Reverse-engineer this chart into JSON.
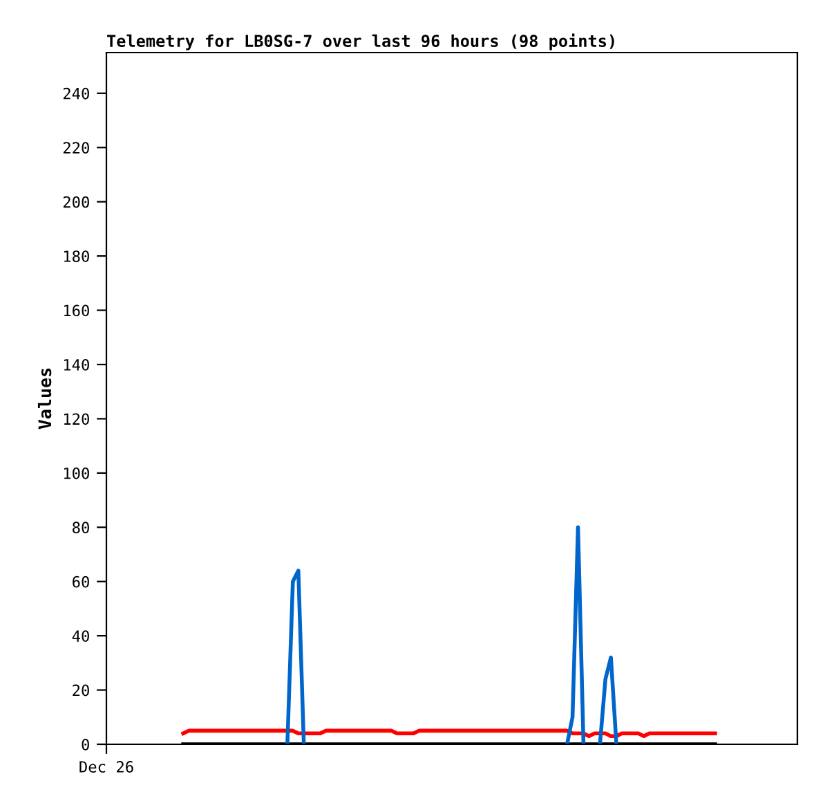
{
  "chart_data": {
    "type": "line",
    "title": "Telemetry for LB0SG-7 over last 96 hours (98 points)",
    "ylabel": "Values",
    "categories": [
      "Dec 26",
      null,
      null,
      null,
      null,
      null,
      null,
      null,
      null,
      null,
      null,
      null,
      null,
      null,
      null,
      null,
      null,
      null,
      null,
      null,
      null,
      null,
      null,
      null,
      null,
      null,
      null,
      null,
      null,
      null,
      null,
      null,
      null,
      null,
      null,
      null,
      null,
      null,
      null,
      null,
      null,
      null,
      null,
      null,
      null,
      null,
      null,
      null,
      null,
      null,
      null,
      null,
      null,
      null,
      null,
      null,
      null,
      null,
      null,
      null,
      null,
      null,
      null,
      null,
      null,
      null,
      null,
      null,
      null,
      null,
      null,
      null,
      null,
      null,
      null,
      null,
      null,
      null,
      null,
      null,
      null,
      null,
      null,
      null,
      null,
      null,
      null,
      null,
      null,
      null,
      null,
      null,
      null,
      null,
      null,
      null,
      null,
      null,
      null,
      null,
      null,
      null,
      null,
      null,
      null,
      null,
      null,
      null,
      null,
      null,
      null,
      null,
      null,
      null,
      null,
      null,
      null,
      null,
      null,
      null,
      null,
      null,
      null,
      null,
      null,
      null,
      null
    ],
    "ylim": [
      0,
      255
    ],
    "yticks": [
      0,
      20,
      40,
      60,
      80,
      100,
      120,
      140,
      160,
      180,
      200,
      220,
      240
    ],
    "grid": false,
    "marker": "none",
    "line_style": "solid",
    "series": [
      {
        "color": "#ff0000",
        "values": [
          null,
          null,
          null,
          null,
          null,
          null,
          null,
          null,
          null,
          null,
          null,
          null,
          null,
          null,
          4,
          5,
          5,
          5,
          5,
          5,
          5,
          5,
          5,
          5,
          5,
          5,
          5,
          5,
          5,
          5,
          5,
          5,
          5,
          5,
          5,
          4,
          4,
          4,
          4,
          4,
          5,
          5,
          5,
          5,
          5,
          5,
          5,
          5,
          5,
          5,
          5,
          5,
          5,
          4,
          4,
          4,
          4,
          5,
          5,
          5,
          5,
          5,
          5,
          5,
          5,
          5,
          5,
          5,
          5,
          5,
          5,
          5,
          5,
          5,
          5,
          5,
          5,
          5,
          5,
          5,
          5,
          5,
          5,
          5,
          5,
          4,
          4,
          4,
          3,
          4,
          4,
          4,
          3,
          3,
          4,
          4,
          4,
          4,
          3,
          4,
          4,
          4,
          4,
          4,
          4,
          4,
          4,
          4,
          4,
          4,
          4,
          4,
          null,
          null,
          null,
          null,
          null,
          null,
          null,
          null,
          null,
          null,
          null,
          null,
          null,
          null,
          null
        ]
      },
      {
        "color": "#000000",
        "values": [
          null,
          null,
          null,
          null,
          null,
          null,
          null,
          null,
          null,
          null,
          null,
          null,
          null,
          null,
          0,
          0,
          0,
          0,
          0,
          0,
          0,
          0,
          0,
          0,
          0,
          0,
          0,
          0,
          0,
          0,
          0,
          0,
          0,
          0,
          0,
          0,
          0,
          0,
          0,
          0,
          0,
          0,
          0,
          0,
          0,
          0,
          0,
          0,
          0,
          0,
          0,
          0,
          0,
          0,
          0,
          0,
          0,
          0,
          0,
          0,
          0,
          0,
          0,
          0,
          0,
          0,
          0,
          0,
          0,
          0,
          0,
          0,
          0,
          0,
          0,
          0,
          0,
          0,
          0,
          0,
          0,
          0,
          0,
          0,
          0,
          0,
          0,
          0,
          0,
          0,
          0,
          0,
          0,
          0,
          0,
          0,
          0,
          0,
          0,
          0,
          0,
          0,
          0,
          0,
          0,
          0,
          0,
          0,
          0,
          0,
          0,
          0,
          null,
          null,
          null,
          null,
          null,
          null,
          null,
          null,
          null,
          null,
          null,
          null,
          null,
          null,
          null
        ]
      },
      {
        "color": "#0066cc",
        "values": [
          null,
          null,
          null,
          null,
          null,
          null,
          null,
          null,
          null,
          null,
          null,
          null,
          null,
          null,
          null,
          null,
          null,
          null,
          null,
          null,
          null,
          null,
          null,
          null,
          null,
          null,
          null,
          null,
          null,
          null,
          null,
          null,
          null,
          0,
          60,
          64,
          0,
          null,
          null,
          null,
          null,
          null,
          null,
          null,
          null,
          null,
          null,
          null,
          null,
          null,
          null,
          null,
          null,
          null,
          null,
          null,
          null,
          null,
          null,
          null,
          null,
          null,
          null,
          null,
          null,
          null,
          null,
          null,
          null,
          null,
          null,
          null,
          null,
          null,
          null,
          null,
          null,
          null,
          null,
          null,
          null,
          null,
          null,
          null,
          0,
          10,
          80,
          0,
          null,
          null,
          0,
          24,
          32,
          0,
          null,
          null,
          null,
          null,
          null,
          null,
          null,
          null,
          null,
          null,
          null,
          null,
          null,
          null,
          null,
          null,
          null,
          null,
          null,
          null,
          null,
          null,
          null,
          null,
          null,
          null,
          null,
          null,
          null,
          null,
          null,
          null,
          null
        ]
      }
    ]
  }
}
